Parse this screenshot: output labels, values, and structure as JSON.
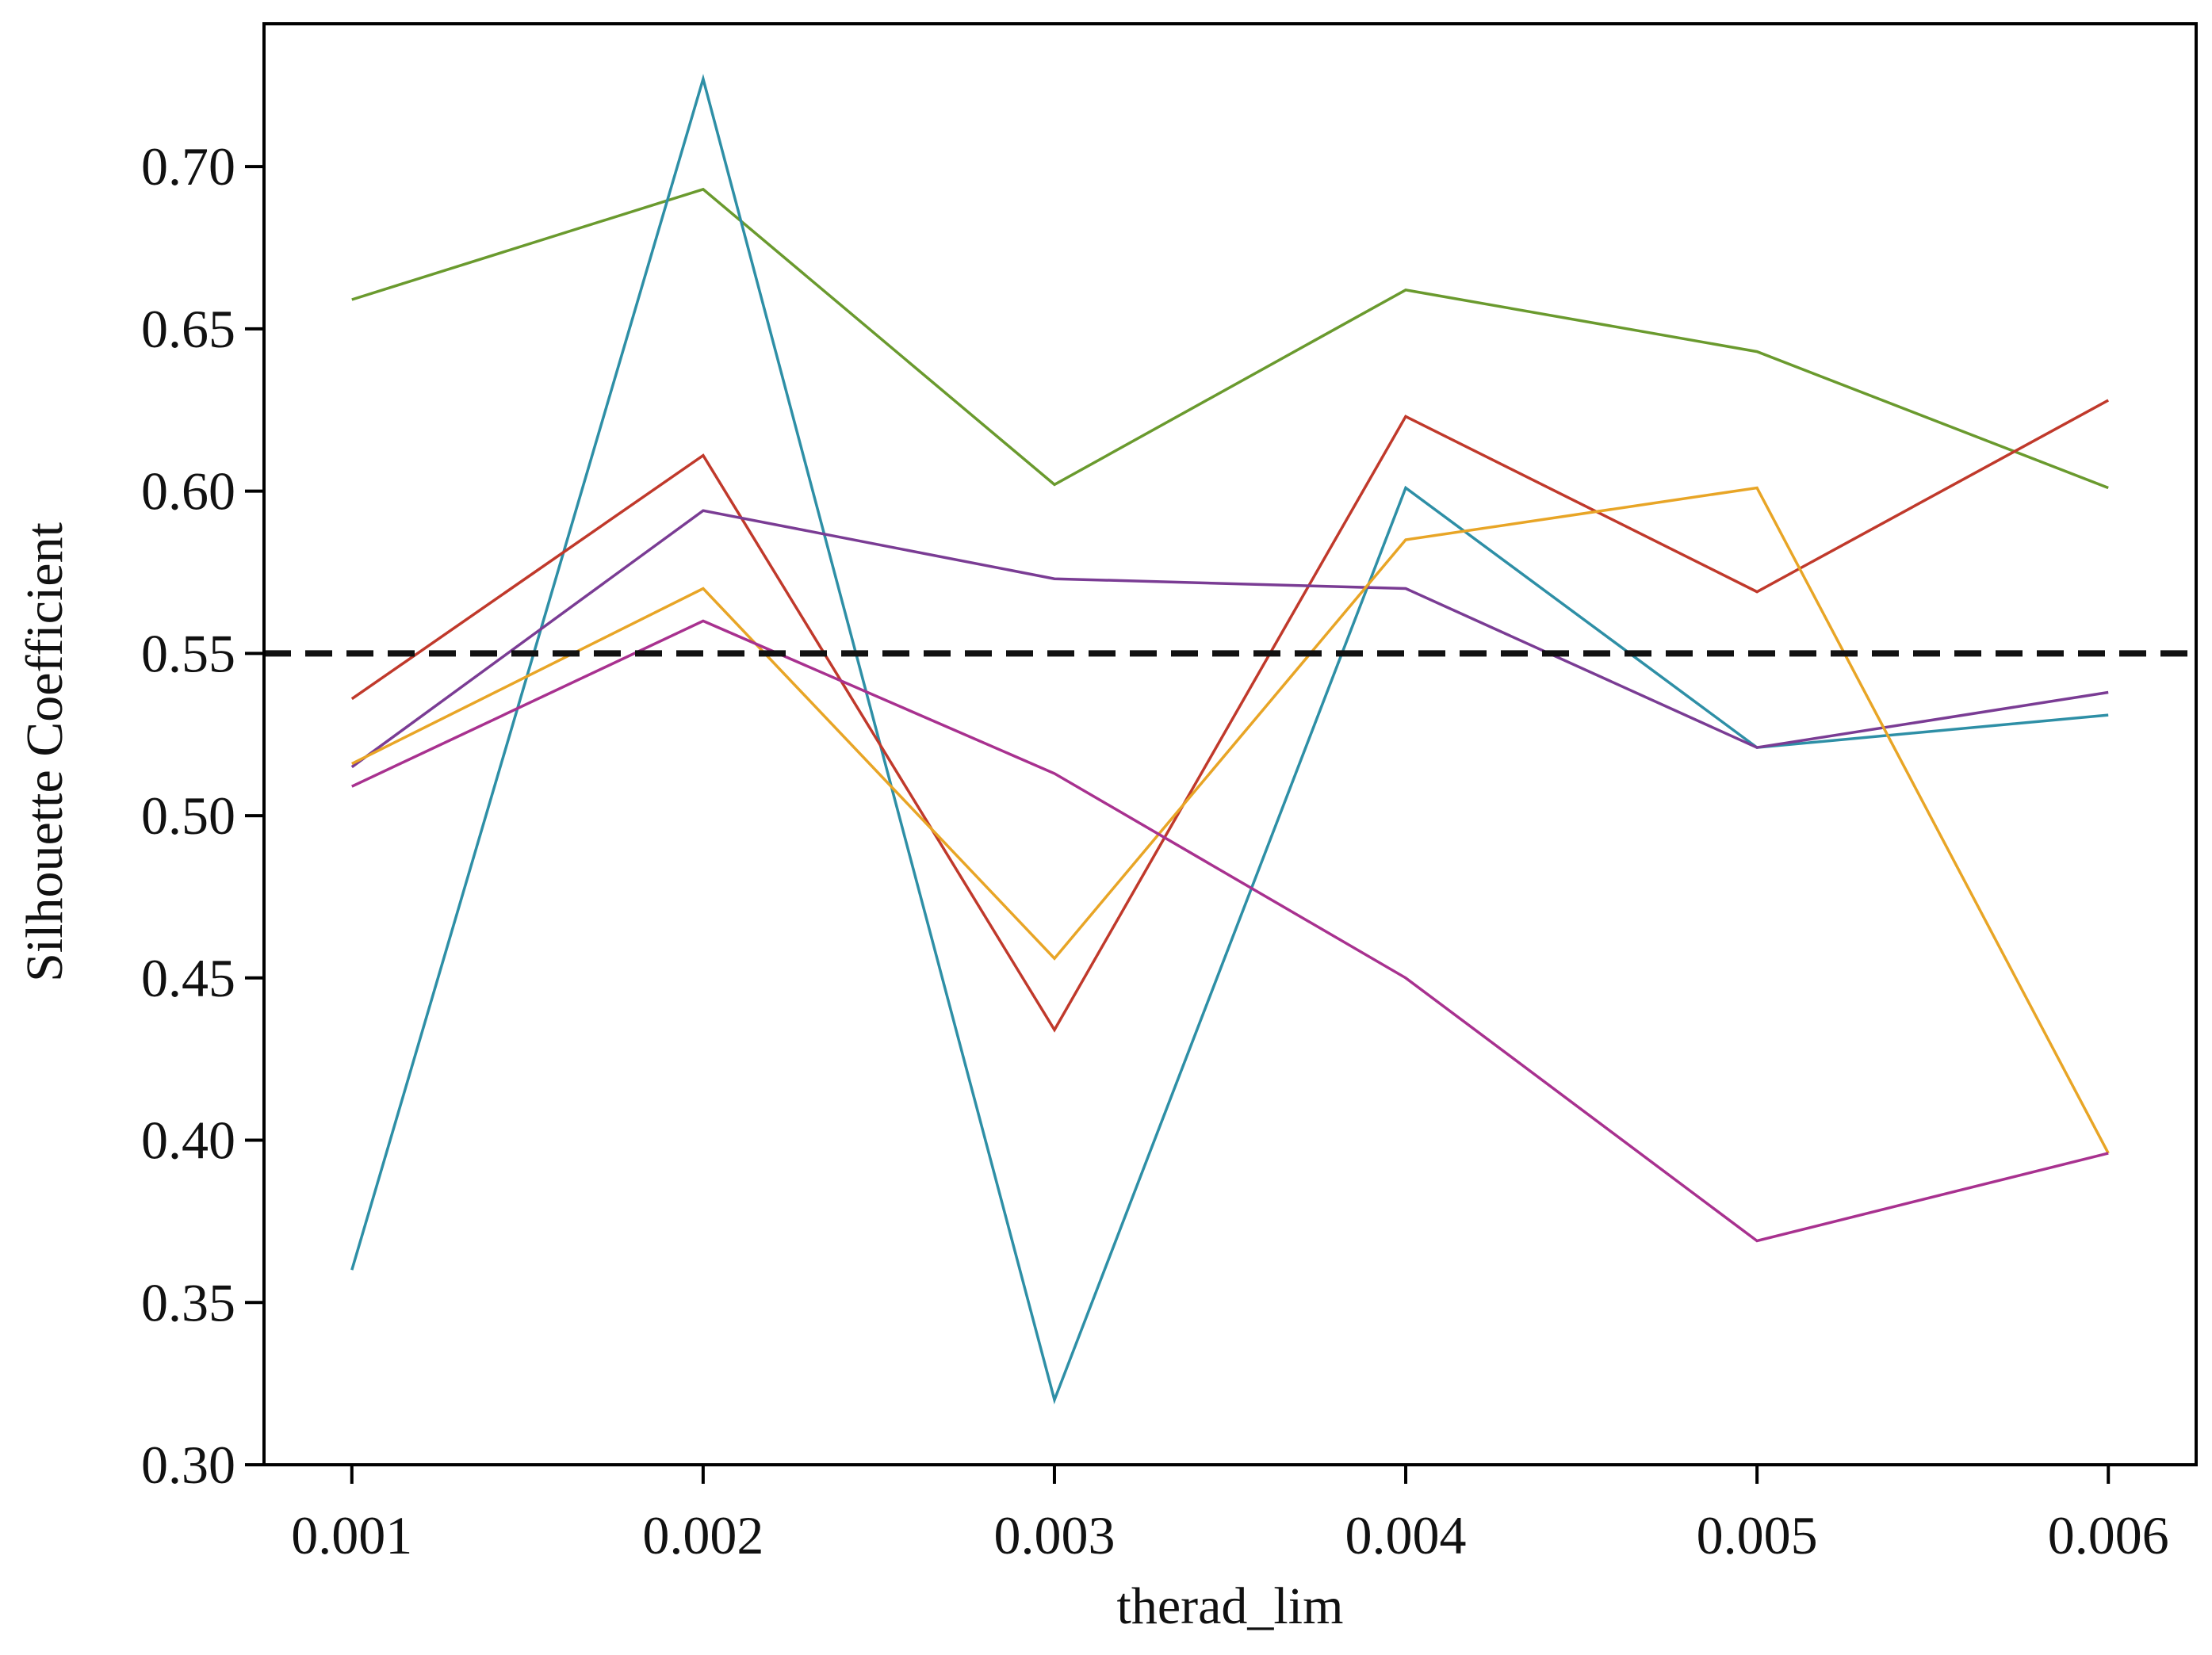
{
  "chart_data": {
    "type": "line",
    "xlabel": "therad_lim",
    "ylabel": "Silhouette Coefficient",
    "x": [
      0.001,
      0.002,
      0.003,
      0.004,
      0.005,
      0.006
    ],
    "x_tick_labels": [
      "0.001",
      "0.002",
      "0.003",
      "0.004",
      "0.005",
      "0.006"
    ],
    "y_tick_values": [
      0.3,
      0.35,
      0.4,
      0.45,
      0.5,
      0.55,
      0.6,
      0.65,
      0.7
    ],
    "y_tick_labels": [
      "0.30",
      "0.35",
      "0.40",
      "0.45",
      "0.50",
      "0.55",
      "0.60",
      "0.65",
      "0.70"
    ],
    "xlim": [
      0.00075,
      0.00625
    ],
    "ylim": [
      0.3,
      0.744
    ],
    "grid": false,
    "legend": "none",
    "reference_line": {
      "y": 0.55,
      "style": "dashed",
      "color": "#111111"
    },
    "series": [
      {
        "color": "#6a9a2e",
        "values": [
          0.659,
          0.693,
          0.602,
          0.662,
          0.643,
          0.601
        ]
      },
      {
        "color": "#2e8fa6",
        "values": [
          0.36,
          0.727,
          0.32,
          0.601,
          0.521,
          0.531
        ]
      },
      {
        "color": "#c0392b",
        "values": [
          0.536,
          0.611,
          0.434,
          0.623,
          0.569,
          0.628
        ]
      },
      {
        "color": "#7a3c94",
        "values": [
          0.515,
          0.594,
          0.573,
          0.57,
          0.521,
          0.538
        ]
      },
      {
        "color": "#e8a526",
        "values": [
          0.516,
          0.57,
          0.456,
          0.585,
          0.601,
          0.396
        ]
      },
      {
        "color": "#a8318f",
        "values": [
          0.509,
          0.56,
          0.513,
          0.45,
          0.369,
          0.396
        ]
      }
    ]
  }
}
